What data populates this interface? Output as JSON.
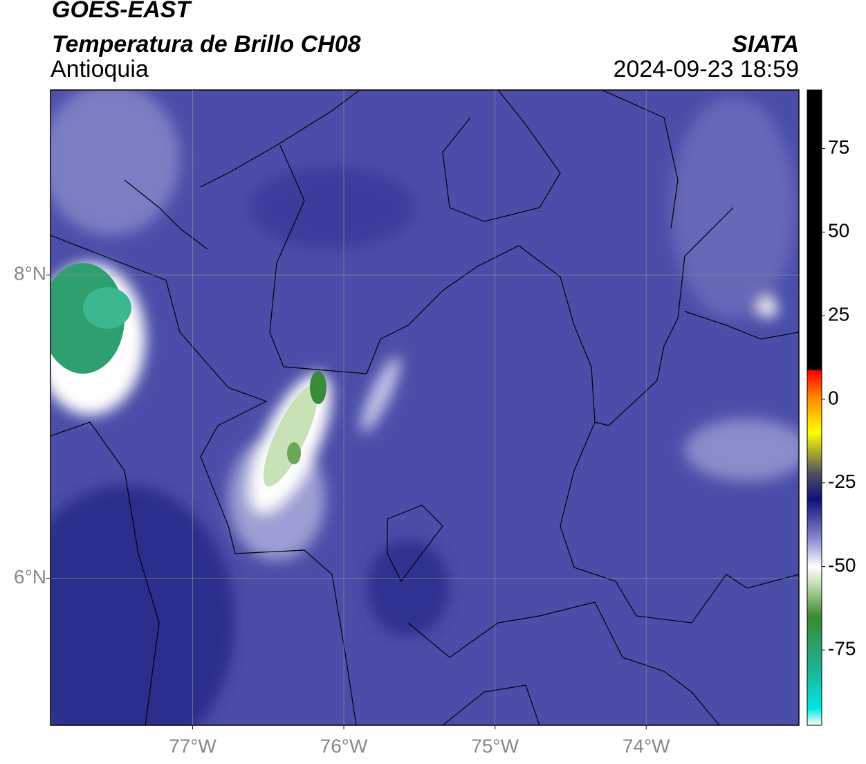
{
  "header": {
    "title": "GOES-EAST",
    "subtitle": "Temperatura de Brillo CH08",
    "region": "Antioquia",
    "source": "SIATA",
    "datetime": "2024-09-23 18:59"
  },
  "map": {
    "lonlim": [
      -77.94,
      -72.99
    ],
    "latlim": [
      5.03,
      9.22
    ],
    "lon_ticks": [
      {
        "value": -77,
        "label": "77°W"
      },
      {
        "value": -76,
        "label": "76°W"
      },
      {
        "value": -75,
        "label": "75°W"
      },
      {
        "value": -74,
        "label": "74°W"
      }
    ],
    "lat_ticks": [
      {
        "value": 8,
        "label": "8°N"
      },
      {
        "value": 6,
        "label": "6°N"
      }
    ],
    "grid": true
  },
  "colorbar": {
    "lim": [
      -97.5,
      92.5
    ],
    "ticks": [
      75,
      50,
      25,
      0,
      -25,
      -50,
      -75
    ],
    "stops": [
      {
        "value": -97.5,
        "color": "#ffffff"
      },
      {
        "value": -92.5,
        "color": "#00e8e0"
      },
      {
        "value": -80,
        "color": "#20b090"
      },
      {
        "value": -65,
        "color": "#3a8a30"
      },
      {
        "value": -55,
        "color": "#c8e0b8"
      },
      {
        "value": -50,
        "color": "#ffffff"
      },
      {
        "value": -42,
        "color": "#8c8cd0"
      },
      {
        "value": -30,
        "color": "#10107a"
      },
      {
        "value": -22,
        "color": "#505060"
      },
      {
        "value": -10,
        "color": "#ffff00"
      },
      {
        "value": 0,
        "color": "#ff9000"
      },
      {
        "value": 8.5,
        "color": "#ff0000"
      },
      {
        "value": 9,
        "color": "#000000"
      },
      {
        "value": 92.5,
        "color": "#000000"
      }
    ]
  }
}
